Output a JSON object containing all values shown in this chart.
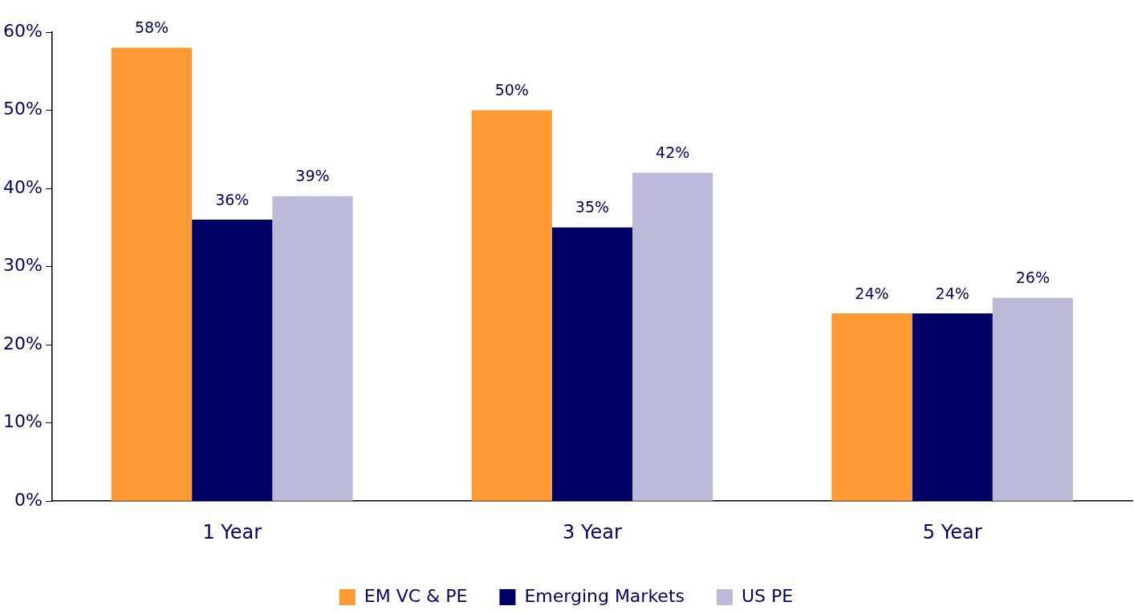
{
  "chart_data": {
    "type": "bar",
    "categories": [
      "1 Year",
      "3 Year",
      "5 Year"
    ],
    "series": [
      {
        "name": "EM VC & PE",
        "color": "#ff9933",
        "values": [
          58,
          50,
          24
        ],
        "value_labels": [
          "58%",
          "50%",
          "24%"
        ]
      },
      {
        "name": "Emerging Markets",
        "color": "#000066",
        "values": [
          36,
          35,
          24
        ],
        "value_labels": [
          "36%",
          "35%",
          "24%"
        ]
      },
      {
        "name": "US PE",
        "color": "#bbbbd9",
        "values": [
          39,
          42,
          26
        ],
        "value_labels": [
          "39%",
          "42%",
          "26%"
        ]
      }
    ],
    "ylim": [
      0,
      60
    ],
    "yticks": [
      {
        "value": 0,
        "label": "0%"
      },
      {
        "value": 10,
        "label": "10%"
      },
      {
        "value": 20,
        "label": "20%"
      },
      {
        "value": 30,
        "label": "30%"
      },
      {
        "value": 40,
        "label": "40%"
      },
      {
        "value": 50,
        "label": "50%"
      },
      {
        "value": 60,
        "label": "60%"
      }
    ],
    "grid": false,
    "legend": "bottom"
  }
}
